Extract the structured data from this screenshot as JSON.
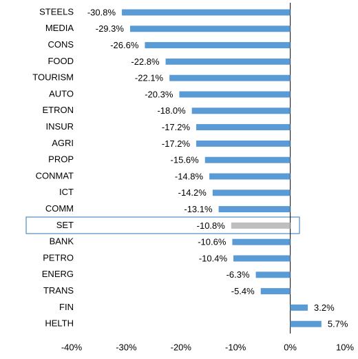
{
  "chart_data": {
    "type": "hbar",
    "categories": [
      "STEELS",
      "MEDIA",
      "CONS",
      "FOOD",
      "TOURISM",
      "AUTO",
      "ETRON",
      "INSUR",
      "AGRI",
      "PROP",
      "CONMAT",
      "ICT",
      "COMM",
      "SET",
      "BANK",
      "PETRO",
      "ENERG",
      "TRANS",
      "FIN",
      "HELTH"
    ],
    "values": [
      -30.8,
      -29.3,
      -26.6,
      -22.8,
      -22.1,
      -20.3,
      -18.0,
      -17.2,
      -17.2,
      -15.6,
      -14.8,
      -14.2,
      -13.1,
      -10.8,
      -10.6,
      -10.4,
      -6.3,
      -5.4,
      3.2,
      5.7
    ],
    "value_labels": [
      "-30.8%",
      "-29.3%",
      "-26.6%",
      "-22.8%",
      "-22.1%",
      "-20.3%",
      "-18.0%",
      "-17.2%",
      "-17.2%",
      "-15.6%",
      "-14.8%",
      "-14.2%",
      "-13.1%",
      "-10.8%",
      "-10.6%",
      "-10.4%",
      "-6.3%",
      "-5.4%",
      "3.2%",
      "5.7%"
    ],
    "colors": [
      "#5b9bd5",
      "#5b9bd5",
      "#5b9bd5",
      "#5b9bd5",
      "#5b9bd5",
      "#5b9bd5",
      "#5b9bd5",
      "#5b9bd5",
      "#5b9bd5",
      "#5b9bd5",
      "#5b9bd5",
      "#5b9bd5",
      "#5b9bd5",
      "#bfbfbf",
      "#5b9bd5",
      "#5b9bd5",
      "#5b9bd5",
      "#5b9bd5",
      "#5b9bd5",
      "#5b9bd5"
    ],
    "xlim": [
      -40,
      10
    ],
    "xticks": [
      {
        "value": -40,
        "label": "-40%"
      },
      {
        "value": -30,
        "label": "-30%"
      },
      {
        "value": -20,
        "label": "-20%"
      },
      {
        "value": -10,
        "label": "-10%"
      },
      {
        "value": 0,
        "label": "0%"
      },
      {
        "value": 10,
        "label": "10%"
      }
    ],
    "grid": false
  }
}
